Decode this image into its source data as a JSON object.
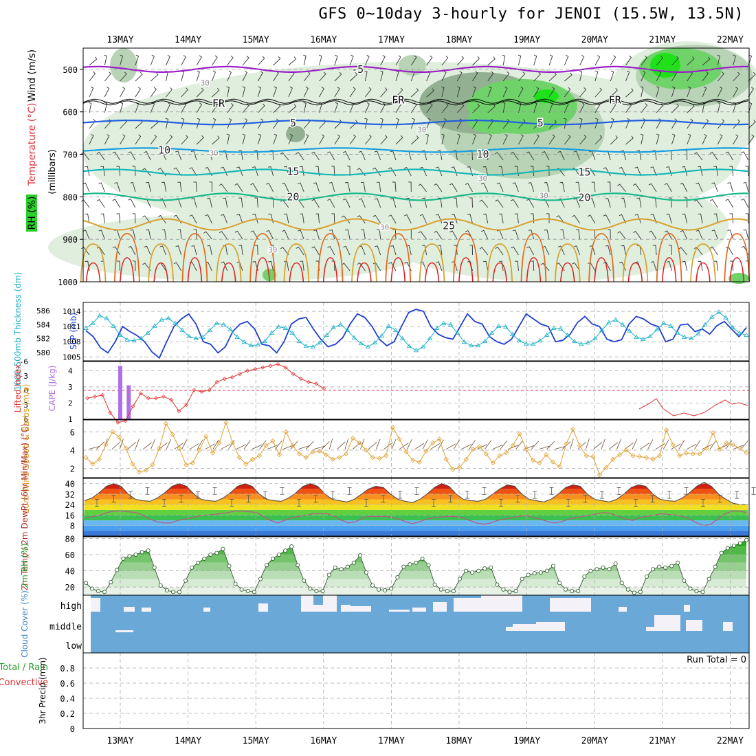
{
  "title": "GFS 0~10day 3-hourly for JENOI (15.5W, 13.5N)",
  "dates": [
    "13MAY",
    "14MAY",
    "15MAY",
    "16MAY",
    "17MAY",
    "18MAY",
    "19MAY",
    "20MAY",
    "21MAY",
    "22MAY"
  ],
  "colors": {
    "rh_light": "#dfeedd",
    "rh_mid": "#b8d3b5",
    "rh_dark": "#93b092",
    "rh_green": "#6fd36a",
    "rh_bright": "#1fe11a",
    "t_minus5": "#9b1ec8",
    "t_fr": "#000000",
    "t_5": "#1f5fe0",
    "t_10": "#1a9fe0",
    "t_15": "#19b7b7",
    "t_20": "#18b88a",
    "t_25": "#d9a030",
    "t_hot1": "#e06a20",
    "t_hot2": "#e02020",
    "slp": "#1f3fd0",
    "thick": "#1ab0c8",
    "li": "#e03030",
    "cape": "#b070e8",
    "wind": "#e0a030",
    "temp_fill": "#e04010",
    "rh_line": "#3aa83a",
    "cloud": "#6aa8d8"
  },
  "chart_data": [
    {
      "type": "contour",
      "panel": "upper-air",
      "ylabel_lines": [
        "Wind (m/s)",
        "Temperature (°C)",
        "RH (%)"
      ],
      "ylabel_parts": {
        "wind": "Wind (m/s)",
        "temp": "Temperature (°C)",
        "rh": "RH (%)"
      },
      "ylabel_units": "(millibars)",
      "y_ticks": [
        500,
        600,
        700,
        800,
        900,
        1000
      ],
      "ylim": [
        450,
        1000
      ],
      "isotherm_labels": [
        {
          "text": "-5",
          "day": 3.5,
          "p": 500
        },
        {
          "text": "FR",
          "day": 1.45,
          "p": 580
        },
        {
          "text": "FR",
          "day": 4.1,
          "p": 572
        },
        {
          "text": "FR",
          "day": 7.3,
          "p": 572
        },
        {
          "text": "5",
          "day": 2.55,
          "p": 626
        },
        {
          "text": "5",
          "day": 6.2,
          "p": 626
        },
        {
          "text": "10",
          "day": 0.65,
          "p": 690
        },
        {
          "text": "10",
          "day": 5.35,
          "p": 700
        },
        {
          "text": "15",
          "day": 2.55,
          "p": 740
        },
        {
          "text": "15",
          "day": 6.85,
          "p": 742
        },
        {
          "text": "20",
          "day": 2.55,
          "p": 800
        },
        {
          "text": "20",
          "day": 6.85,
          "p": 802
        },
        {
          "text": "25",
          "day": 4.85,
          "p": 868
        },
        {
          "text": "30",
          "day": 1.25,
          "p": 530
        },
        {
          "text": "30",
          "day": 1.38,
          "p": 695
        },
        {
          "text": "30",
          "day": 4.45,
          "p": 640
        },
        {
          "text": "30",
          "day": 5.35,
          "p": 755
        },
        {
          "text": "30",
          "day": 6.25,
          "p": 795
        },
        {
          "text": "30",
          "day": 3.9,
          "p": 870
        },
        {
          "text": "30",
          "day": 2.25,
          "p": 923
        }
      ]
    },
    {
      "type": "line",
      "panel": "slp-thickness",
      "ylabel_left": "1000-500mb Thickness (dm)",
      "ylabel_right": "SLP (mb)",
      "left_ticks": [
        580,
        582,
        584,
        586
      ],
      "right_ticks": [
        1005,
        1008,
        1011,
        1014
      ],
      "series": [
        {
          "values": [
            1010.2,
            1009,
            1006.8,
            1005.8,
            1008,
            1011,
            1010,
            1009.2,
            1008,
            1006,
            1004.8,
            1008,
            1011,
            1012.5,
            1013.5,
            1011.5,
            1008,
            1007.5,
            1005.8,
            1007,
            1010,
            1011.5,
            1012,
            1010.5,
            1007.5,
            1007.2,
            1005.8,
            1008,
            1011.5,
            1012.5,
            1012.8,
            1010.5,
            1008.5,
            1007,
            1007.5,
            1008.8,
            1011.5,
            1013.5,
            1012.8,
            1011,
            1008.5,
            1007.2,
            1008,
            1011,
            1013.8,
            1014.4,
            1014,
            1011,
            1009.5,
            1008.8,
            1008.5,
            1011,
            1013.5,
            1012,
            1011.5,
            1009,
            1008,
            1007.5,
            1008.5,
            1011,
            1013.5,
            1012.5,
            1011.5,
            1011,
            1008,
            1008.3,
            1009.5,
            1011.8,
            1013,
            1011.5,
            1011,
            1008.5,
            1008,
            1008.4,
            1011.5,
            1013,
            1012.5,
            1011.5,
            1011,
            1008,
            1008.5,
            1011.3,
            1011.5,
            1010,
            1010.5,
            1009.5,
            1011.2,
            1012,
            1010.5,
            1009,
            1010.8
          ]
        },
        {
          "values": [
            583.5,
            584.2,
            585.3,
            584.9,
            583.8,
            582.5,
            581.8,
            581.7,
            582,
            582.8,
            583.8,
            584.7,
            584.9,
            584.2,
            583.2,
            582.3,
            582,
            582.2,
            583.2,
            584.2,
            584,
            583.3,
            582.2,
            581.5,
            581,
            581.1,
            581.6,
            582.8,
            583.7,
            583.5,
            582.8,
            581.6,
            580.9,
            580.8,
            581.4,
            582.5,
            583.6,
            584,
            583.2,
            582.1,
            581.3,
            580.8,
            581.4,
            582.4,
            583.8,
            583.2,
            582,
            580.9,
            580.3,
            580.8,
            582,
            583.5,
            584.2,
            584,
            582.8,
            581.5,
            581,
            581,
            581.6,
            582.8,
            583.8,
            583.7,
            582.6,
            581.7,
            581.2,
            581.2,
            581.7,
            582.5,
            583.5,
            583.4,
            582.5,
            581.6,
            581.2,
            581.4,
            582,
            583.2,
            584.3,
            584.7,
            584,
            583.1,
            582.2,
            581.9,
            582.3,
            583.3,
            584.2,
            583.8,
            582.8,
            582.2,
            582,
            582.7,
            584,
            585.1,
            585.8,
            585,
            583.6,
            582.8,
            582.5
          ]
        }
      ]
    },
    {
      "type": "bar+line",
      "panel": "li-cape",
      "ylabel_left": "Lifted Index",
      "ylabel_right": "CAPE (J/kg)",
      "left_ticks": [
        6,
        3,
        0,
        -3,
        -6
      ],
      "right_ticks": [
        1,
        2,
        3,
        4
      ],
      "cape_bars": [
        {
          "day": 0.0,
          "value": 4.3
        },
        {
          "day": 0.125,
          "value": 3.1
        }
      ],
      "li_values": [
        2.3,
        2.4,
        2.5,
        1.4,
        0.8,
        0.9,
        1.8,
        2.6,
        2.3,
        2.3,
        2.4,
        2.2,
        1.5,
        1.9,
        2.8,
        2.7,
        2.8,
        3.3,
        3.5,
        3.6,
        3.8,
        4.0,
        4.1,
        4.2,
        4.3,
        4.4,
        4.2,
        3.8,
        3.5,
        3.3,
        3.2,
        2.9
      ]
    },
    {
      "type": "line",
      "panel": "wind10m",
      "ylabel": "10m Wind Speed & Barbs (m/s)",
      "y_ticks": [
        2,
        4,
        6
      ],
      "ylim": [
        1,
        7.3
      ],
      "values": [
        3.2,
        2.5,
        3.0,
        4.6,
        6.0,
        5.4,
        4.2,
        2.5,
        1.6,
        1.8,
        2.4,
        4.2,
        6.9,
        5.7,
        4.2,
        2.4,
        2.6,
        4.0,
        5.5,
        3.7,
        4.8,
        7.0,
        4.8,
        3.2,
        2.5,
        3.0,
        3.4,
        4.5,
        5.0,
        3.5,
        6.0,
        4.5,
        3.6,
        3.2,
        3.8,
        3.9,
        3.5,
        3.0,
        3.2,
        3.6,
        5.3,
        4.8,
        4.0,
        3.2,
        3.1,
        3.4,
        6.5,
        5.2,
        3.8,
        2.9,
        2.7,
        3.9,
        4.8,
        5.2,
        3.0,
        1.9,
        2.1,
        3.0,
        4.1,
        4.4,
        3.6,
        2.6,
        3.4,
        3.7,
        4.5,
        5.8,
        4.1,
        2.9,
        2.6,
        3.5,
        2.7,
        2.2,
        4.7,
        6.3,
        4.5,
        3.4,
        3.3,
        1.3,
        2.1,
        3.0,
        3.5,
        4.0,
        3.4,
        3.3,
        3.2,
        3.0,
        3.4,
        6.2,
        4.6,
        3.4,
        3.7,
        3.6,
        3.6,
        4.2,
        5.9,
        4.1,
        4.8,
        4.6,
        4.2,
        3.7
      ]
    },
    {
      "type": "area",
      "panel": "temp2m",
      "ylabel": "2m Temp / 2m DewPt (6hr Min/Max) (°C)",
      "ylabel_parts": {
        "temp": "2m Temp",
        "dewpt": "2m DewPt",
        "minmax": "(6hr Min/Max)"
      },
      "y_ticks": [
        8,
        16,
        24,
        32,
        40
      ],
      "ylim": [
        0,
        44
      ],
      "temp_values": [
        27,
        29,
        33,
        38,
        40,
        38,
        32,
        28,
        27,
        26.5,
        29,
        33,
        38,
        40,
        38,
        32,
        28,
        27,
        26.5,
        29,
        33,
        38,
        40,
        38,
        32,
        28,
        27,
        26.5,
        29,
        33,
        38,
        40,
        38,
        32,
        28,
        27,
        26,
        28,
        32,
        36,
        38,
        37,
        32,
        28,
        26.5,
        25.5,
        28,
        32,
        37,
        40,
        38,
        32,
        28,
        27,
        26.5,
        28,
        32,
        36,
        39,
        38,
        32,
        28,
        27,
        26,
        28,
        32,
        37,
        39,
        38,
        32,
        28,
        27,
        26,
        28,
        32,
        37,
        39,
        38,
        32,
        28,
        27,
        26.5,
        29,
        33,
        38,
        41,
        38,
        32,
        28,
        25,
        24,
        24
      ],
      "dewpt_values": [
        14,
        15,
        16,
        18,
        19,
        19,
        18.5,
        18,
        16,
        13,
        11,
        10,
        10,
        12,
        13,
        14,
        15.5,
        16,
        16.5,
        17,
        18,
        19,
        19,
        18.5,
        18,
        15,
        12,
        10,
        12,
        14,
        15,
        16,
        17,
        17,
        17,
        15,
        12,
        10,
        11,
        14,
        15,
        15,
        15,
        14.5,
        13,
        11,
        9.5,
        11,
        13,
        14,
        14.5,
        15,
        15,
        14,
        12,
        10,
        9,
        10,
        12,
        13,
        14,
        15,
        16,
        14,
        13,
        11,
        10,
        11,
        13,
        14,
        15,
        16,
        17,
        18,
        17,
        15,
        13,
        12,
        14,
        15,
        16,
        17,
        16.5,
        16,
        15,
        13,
        10,
        8,
        9,
        13,
        17,
        19,
        19,
        18
      ]
    },
    {
      "type": "area",
      "panel": "rh2m",
      "ylabel": "2m RH (%)",
      "y_ticks": [
        20,
        40,
        60,
        80
      ],
      "ylim": [
        10,
        82
      ],
      "values": [
        25,
        18,
        15,
        14,
        26,
        41,
        55,
        58,
        60,
        63,
        65,
        44,
        22,
        16,
        14,
        14,
        28,
        44,
        50,
        55,
        60,
        62,
        67,
        46,
        24,
        17,
        15,
        14,
        30,
        47,
        55,
        60,
        65,
        70,
        47,
        28,
        18,
        15,
        15,
        35,
        44,
        42,
        45,
        50,
        59,
        38,
        22,
        17,
        16,
        18,
        32,
        45,
        48,
        50,
        55,
        47,
        23,
        17,
        15,
        15,
        30,
        40,
        38,
        40,
        43,
        44,
        23,
        17,
        14,
        15,
        30,
        35,
        37,
        38,
        40,
        46,
        25,
        17,
        15,
        15,
        33,
        40,
        42,
        44,
        42,
        49,
        25,
        17,
        13,
        14,
        33,
        42,
        45,
        44,
        46,
        50,
        28,
        18,
        15,
        14,
        30,
        45,
        62,
        68,
        71,
        74,
        78
      ]
    },
    {
      "type": "heatmap",
      "panel": "cloud",
      "ylabel": "Cloud Cover (%)",
      "row_labels": [
        "high",
        "middle",
        "low"
      ]
    },
    {
      "type": "bar",
      "panel": "precip",
      "ylabel_left": "Total / Rain",
      "ylabel_left2": "Convective",
      "ylabel": "3hr Precip (mm)",
      "y_ticks": [
        0,
        0.2,
        0.4,
        0.6,
        0.8
      ],
      "ylim": [
        0,
        1.0
      ],
      "run_total_label": "Run Total = 0",
      "values": []
    }
  ]
}
